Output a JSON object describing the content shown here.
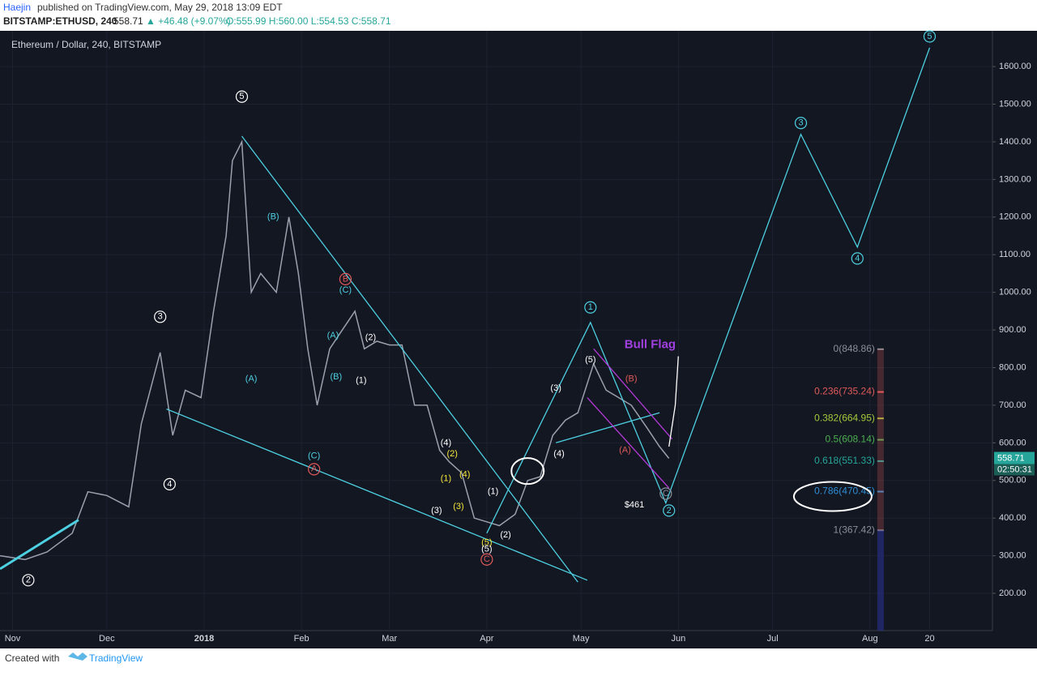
{
  "header": {
    "publisher": "Haejin",
    "published": "published on TradingView.com, May 29, 2018 13:09 EDT",
    "symbol": "BITSTAMP:ETHUSD, 240",
    "price": "558.71",
    "change": "▲ +46.48 (+9.07%)",
    "ohlc": "O:555.99 H:560.00 L:554.53 C:558.71"
  },
  "footer": {
    "created": "Created with",
    "brand": "TradingView"
  },
  "chart_data": {
    "type": "line",
    "legend_title": "Ethereum / Dollar, 240, BITSTAMP",
    "ylim": [
      101,
      1695
    ],
    "yticks": [
      {
        "value": 200,
        "label": "200.00"
      },
      {
        "value": 300,
        "label": "300.00"
      },
      {
        "value": 400,
        "label": "400.00"
      },
      {
        "value": 500,
        "label": "500.00"
      },
      {
        "value": 600,
        "label": "600.00"
      },
      {
        "value": 700,
        "label": "700.00"
      },
      {
        "value": 800,
        "label": "800.00"
      },
      {
        "value": 900,
        "label": "900.00"
      },
      {
        "value": 1000,
        "label": "1000.00"
      },
      {
        "value": 1100,
        "label": "1100.00"
      },
      {
        "value": 1200,
        "label": "1200.00"
      },
      {
        "value": 1300,
        "label": "1300.00"
      },
      {
        "value": 1400,
        "label": "1400.00"
      },
      {
        "value": 1500,
        "label": "1500.00"
      },
      {
        "value": 1600,
        "label": "1600.00"
      }
    ],
    "xlim": [
      "2017-10-28",
      "2018-09-09"
    ],
    "xticks": [
      {
        "value": "2017-11-01",
        "label": "Nov"
      },
      {
        "value": "2017-12-01",
        "label": "Dec"
      },
      {
        "value": "2018-01-01",
        "label": "2018"
      },
      {
        "value": "2018-02-01",
        "label": "Feb"
      },
      {
        "value": "2018-03-01",
        "label": "Mar"
      },
      {
        "value": "2018-04-01",
        "label": "Apr"
      },
      {
        "value": "2018-05-01",
        "label": "May"
      },
      {
        "value": "2018-06-01",
        "label": "Jun"
      },
      {
        "value": "2018-07-01",
        "label": "Jul"
      },
      {
        "value": "2018-08-01",
        "label": "Aug"
      },
      {
        "value": "2018-08-20",
        "label": "20"
      }
    ],
    "grid": true,
    "last_price": 558.71,
    "last_price_label": "558.71",
    "countdown": "02:50:31",
    "x": [
      "2017-10-28",
      "2017-11-05",
      "2017-11-12",
      "2017-11-20",
      "2017-11-25",
      "2017-12-01",
      "2017-12-08",
      "2017-12-12",
      "2017-12-18",
      "2017-12-22",
      "2017-12-26",
      "2017-12-31",
      "2018-01-04",
      "2018-01-08",
      "2018-01-10",
      "2018-01-13",
      "2018-01-16",
      "2018-01-19",
      "2018-01-24",
      "2018-01-28",
      "2018-01-31",
      "2018-02-03",
      "2018-02-06",
      "2018-02-10",
      "2018-02-14",
      "2018-02-18",
      "2018-02-21",
      "2018-02-25",
      "2018-03-01",
      "2018-03-05",
      "2018-03-09",
      "2018-03-13",
      "2018-03-17",
      "2018-03-20",
      "2018-03-24",
      "2018-03-28",
      "2018-04-01",
      "2018-04-05",
      "2018-04-10",
      "2018-04-14",
      "2018-04-18",
      "2018-04-22",
      "2018-04-26",
      "2018-04-30",
      "2018-05-05",
      "2018-05-09",
      "2018-05-13",
      "2018-05-17",
      "2018-05-22",
      "2018-05-26",
      "2018-05-29"
    ],
    "series": [
      {
        "color": "#9aa0ad",
        "values": [
          300,
          290,
          310,
          360,
          470,
          460,
          430,
          650,
          840,
          620,
          740,
          720,
          950,
          1150,
          1350,
          1400,
          1000,
          1050,
          1000,
          1200,
          1050,
          850,
          700,
          850,
          900,
          950,
          850,
          870,
          860,
          860,
          700,
          700,
          580,
          550,
          520,
          400,
          390,
          380,
          410,
          500,
          510,
          620,
          660,
          680,
          810,
          740,
          720,
          700,
          640,
          590,
          558.71
        ]
      }
    ],
    "drawings": [
      {
        "color": "#4dd0e1",
        "x": [
          "2018-01-13",
          "2018-04-30"
        ],
        "y": [
          1415,
          230
        ]
      },
      {
        "color": "#4dd0e1",
        "x": [
          "2017-12-20",
          "2018-05-03"
        ],
        "y": [
          690,
          235
        ]
      },
      {
        "color": "#4dd0e1",
        "x": [
          "2018-04-01",
          "2018-05-04",
          "2018-05-28",
          "2018-07-10",
          "2018-07-28",
          "2018-08-20"
        ],
        "y": [
          360,
          920,
          440,
          1420,
          1120,
          1650
        ]
      },
      {
        "color": "#4dd0e1",
        "x": [
          "2018-04-23",
          "2018-05-26"
        ],
        "y": [
          600,
          680
        ]
      },
      {
        "color": "#4dd0e1",
        "x": [
          "2017-10-28",
          "2017-11-22"
        ],
        "y": [
          265,
          395
        ]
      },
      {
        "color": "#b23ad6",
        "x": [
          "2018-05-05",
          "2018-05-30"
        ],
        "y": [
          850,
          610
        ]
      },
      {
        "color": "#b23ad6",
        "x": [
          "2018-05-03",
          "2018-05-29"
        ],
        "y": [
          720,
          480
        ]
      },
      {
        "color": "#ffffff",
        "x": [
          "2018-05-29",
          "2018-05-31",
          "2018-06-01"
        ],
        "y": [
          590,
          700,
          830
        ]
      }
    ],
    "annotations": [
      {
        "text": "5",
        "x": "2018-01-13",
        "y": 1520,
        "color": "#ffffff",
        "circled": true
      },
      {
        "text": "3",
        "x": "2017-12-18",
        "y": 935,
        "color": "#ffffff",
        "circled": true
      },
      {
        "text": "4",
        "x": "2017-12-21",
        "y": 490,
        "color": "#ffffff",
        "circled": true
      },
      {
        "text": "2",
        "x": "2017-11-06",
        "y": 235,
        "color": "#ffffff",
        "circled": true
      },
      {
        "text": "1",
        "x": "2018-05-04",
        "y": 960,
        "color": "#4dd0e1",
        "circled": true
      },
      {
        "text": "2",
        "x": "2018-05-29",
        "y": 420,
        "color": "#4dd0e1",
        "circled": true
      },
      {
        "text": "3",
        "x": "2018-07-10",
        "y": 1450,
        "color": "#4dd0e1",
        "circled": true
      },
      {
        "text": "4",
        "x": "2018-07-28",
        "y": 1090,
        "color": "#4dd0e1",
        "circled": true
      },
      {
        "text": "5",
        "x": "2018-08-20",
        "y": 1680,
        "color": "#4dd0e1",
        "circled": true
      },
      {
        "text": "(B)",
        "x": "2018-01-23",
        "y": 1200,
        "color": "#4dd0e1",
        "circled": false
      },
      {
        "text": "(A)",
        "x": "2018-01-16",
        "y": 770,
        "color": "#4dd0e1",
        "circled": false
      },
      {
        "text": "(C)",
        "x": "2018-02-05",
        "y": 565,
        "color": "#4dd0e1",
        "circled": false
      },
      {
        "text": "(A)",
        "x": "2018-02-11",
        "y": 885,
        "color": "#4dd0e1",
        "circled": false
      },
      {
        "text": "(B)",
        "x": "2018-02-12",
        "y": 775,
        "color": "#4dd0e1",
        "circled": false
      },
      {
        "text": "(C)",
        "x": "2018-02-15",
        "y": 1005,
        "color": "#4dd0e1",
        "circled": false
      },
      {
        "text": "B",
        "x": "2018-02-15",
        "y": 1035,
        "color": "#e05a5a",
        "circled": true
      },
      {
        "text": "A",
        "x": "2018-02-05",
        "y": 530,
        "color": "#e05a5a",
        "circled": true
      },
      {
        "text": "(2)",
        "x": "2018-02-23",
        "y": 880,
        "color": "#ffffff",
        "circled": false
      },
      {
        "text": "(1)",
        "x": "2018-02-20",
        "y": 765,
        "color": "#ffffff",
        "circled": false
      },
      {
        "text": "(4)",
        "x": "2018-03-19",
        "y": 600,
        "color": "#ffffff",
        "circled": false
      },
      {
        "text": "(3)",
        "x": "2018-03-16",
        "y": 420,
        "color": "#ffffff",
        "circled": false
      },
      {
        "text": "(2)",
        "x": "2018-03-21",
        "y": 570,
        "color": "#f5e63b",
        "circled": false
      },
      {
        "text": "(1)",
        "x": "2018-03-19",
        "y": 505,
        "color": "#f5e63b",
        "circled": false
      },
      {
        "text": "(4)",
        "x": "2018-03-25",
        "y": 515,
        "color": "#f5e63b",
        "circled": false
      },
      {
        "text": "(3)",
        "x": "2018-03-23",
        "y": 430,
        "color": "#f5e63b",
        "circled": false
      },
      {
        "text": "(5)",
        "x": "2018-04-01",
        "y": 335,
        "color": "#f5e63b",
        "circled": false
      },
      {
        "text": "(5)",
        "x": "2018-04-01",
        "y": 317,
        "color": "#ffffff",
        "circled": false
      },
      {
        "text": "C",
        "x": "2018-04-01",
        "y": 290,
        "color": "#e05a5a",
        "circled": true
      },
      {
        "text": "(1)",
        "x": "2018-04-03",
        "y": 470,
        "color": "#ffffff",
        "circled": false
      },
      {
        "text": "(2)",
        "x": "2018-04-07",
        "y": 355,
        "color": "#ffffff",
        "circled": false
      },
      {
        "text": "(4)",
        "x": "2018-04-24",
        "y": 570,
        "color": "#ffffff",
        "circled": false
      },
      {
        "text": "(3)",
        "x": "2018-04-23",
        "y": 745,
        "color": "#ffffff",
        "circled": false
      },
      {
        "text": "(5)",
        "x": "2018-05-04",
        "y": 820,
        "color": "#ffffff",
        "circled": false
      },
      {
        "text": "(B)",
        "x": "2018-05-17",
        "y": 770,
        "color": "#e05a5a",
        "circled": false
      },
      {
        "text": "(A)",
        "x": "2018-05-15",
        "y": 580,
        "color": "#e05a5a",
        "circled": false
      },
      {
        "text": "C",
        "x": "2018-05-28",
        "y": 465,
        "color": "#8a8f99",
        "circled": true
      },
      {
        "text": "Bull Flag",
        "x": "2018-05-23",
        "y": 860,
        "color": "#a040e0",
        "circled": false
      },
      {
        "text": "$461",
        "x": "2018-05-18",
        "y": 435,
        "color": "#ffffff",
        "circled": false
      }
    ],
    "fib": {
      "x": "2018-07-15",
      "levels": [
        {
          "value": 848.86,
          "label": "0(848.86)",
          "color": "#8a8f99"
        },
        {
          "value": 735.24,
          "label": "0.236(735.24)",
          "color": "#e05a5a"
        },
        {
          "value": 664.95,
          "label": "0.382(664.95)",
          "color": "#a6c93a"
        },
        {
          "value": 608.14,
          "label": "0.5(608.14)",
          "color": "#4caf50"
        },
        {
          "value": 551.33,
          "label": "0.618(551.33)",
          "color": "#26a69a"
        },
        {
          "value": 470.45,
          "label": "0.786(470.45)",
          "color": "#2f8fd6"
        },
        {
          "value": 367.42,
          "label": "1(367.42)",
          "color": "#8a8f99"
        }
      ]
    }
  }
}
